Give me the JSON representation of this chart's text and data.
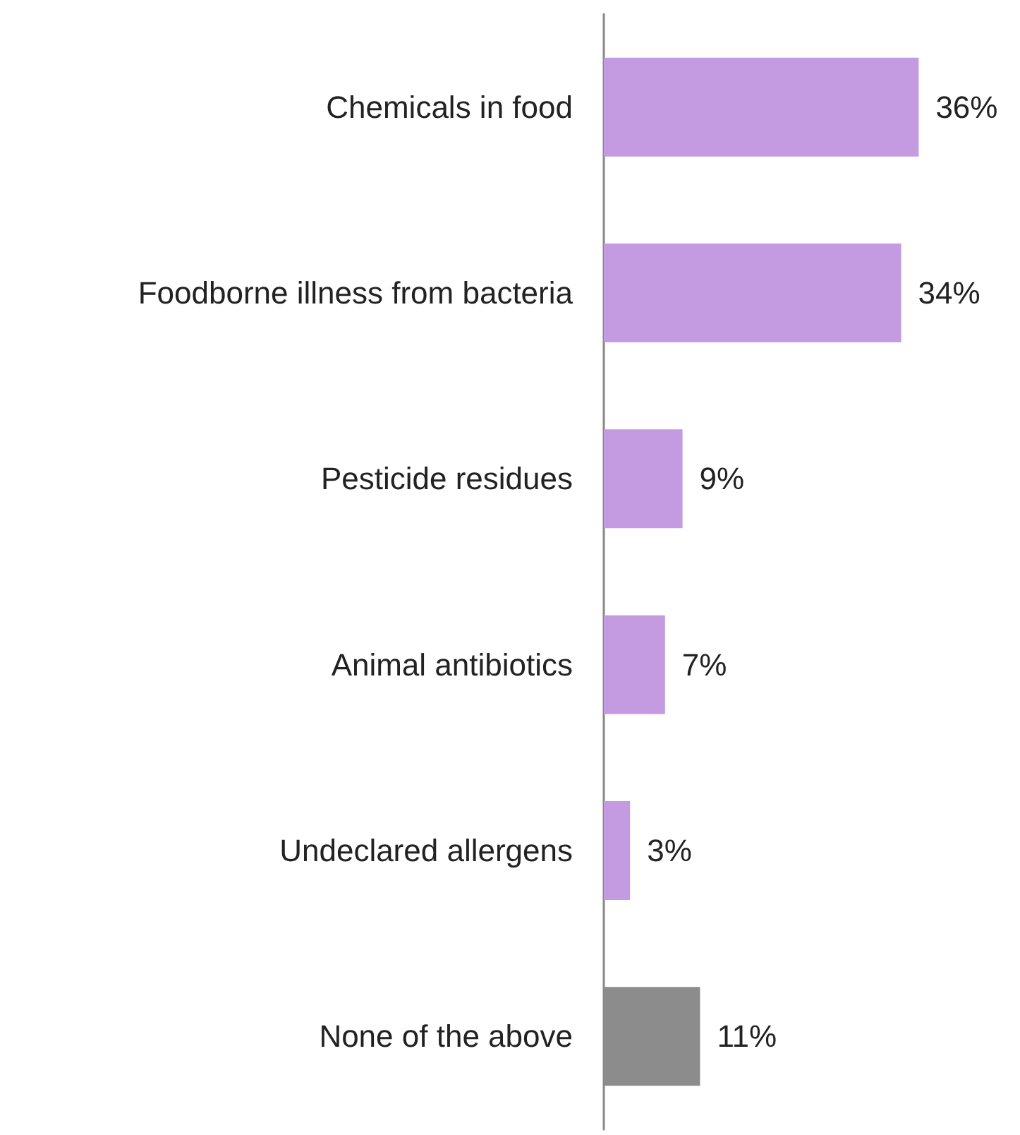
{
  "chart_data": {
    "type": "bar",
    "orientation": "horizontal",
    "categories": [
      "Chemicals in food",
      "Foodborne illness from bacteria",
      "Pesticide residues",
      "Animal antibiotics",
      "Undeclared allergens",
      "None of the above"
    ],
    "values": [
      36,
      34,
      9,
      7,
      3,
      11
    ],
    "colors": [
      "#c49be0",
      "#c49be0",
      "#c49be0",
      "#c49be0",
      "#c49be0",
      "#8c8c8c"
    ],
    "value_labels": [
      "36%",
      "34%",
      "9%",
      "7%",
      "3%",
      "11%"
    ],
    "tick_labels": "y",
    "grid": false
  }
}
